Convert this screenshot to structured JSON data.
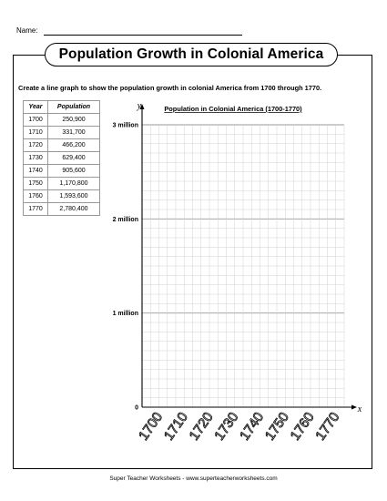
{
  "worksheet": {
    "name_label": "Name:",
    "title": "Population Growth in Colonial America",
    "instructions": "Create a line graph to show the population growth in colonial America from 1700 through 1770.",
    "footer": "Super Teacher Worksheets - www.superteacherworksheets.com"
  },
  "table": {
    "headers": [
      "Year",
      "Population"
    ],
    "rows": [
      [
        "1700",
        "250,900"
      ],
      [
        "1710",
        "331,700"
      ],
      [
        "1720",
        "466,200"
      ],
      [
        "1730",
        "629,400"
      ],
      [
        "1740",
        "905,600"
      ],
      [
        "1750",
        "1,170,800"
      ],
      [
        "1760",
        "1,593,600"
      ],
      [
        "1770",
        "2,780,400"
      ]
    ]
  },
  "chart_data": {
    "type": "line",
    "title": "Population in Colonial America (1700-1770)",
    "xlabel": "x",
    "ylabel": "y",
    "categories": [
      "1700",
      "1710",
      "1720",
      "1730",
      "1740",
      "1750",
      "1760",
      "1770"
    ],
    "y_ticks": [
      "0",
      "1 million",
      "2 million",
      "3 million"
    ],
    "y_tick_values": [
      0,
      1000000,
      2000000,
      3000000
    ],
    "ylim": [
      0,
      3000000
    ],
    "grid": true,
    "series": []
  }
}
